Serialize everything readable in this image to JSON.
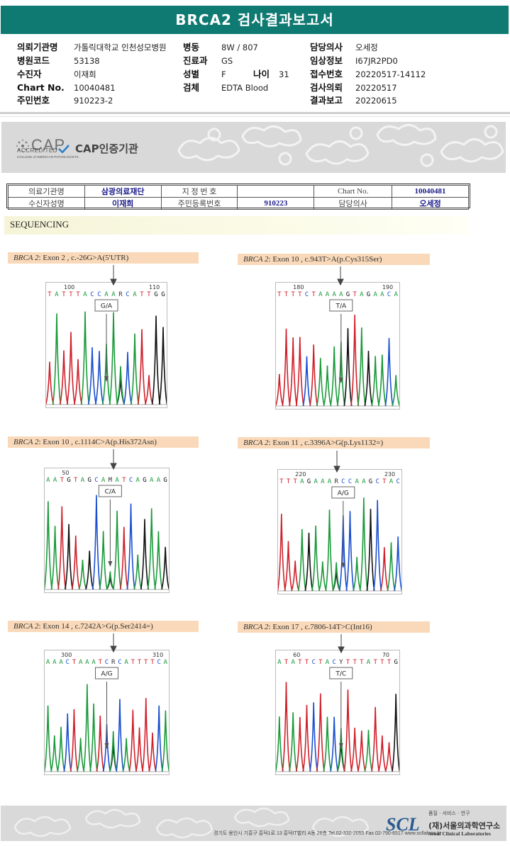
{
  "header": {
    "title": "BRCA2 검사결과보고서"
  },
  "info": {
    "fields": [
      {
        "label": "의뢰기관명",
        "value": "가톨릭대학교 인천성모병원"
      },
      {
        "label": "병원코드",
        "value": "53138"
      },
      {
        "label": "수진자",
        "value": "이재희"
      },
      {
        "label": "Chart No.",
        "value": "10040481"
      },
      {
        "label": "주민번호",
        "value": "910223-2"
      },
      {
        "label": "병동",
        "value": "8W / 807"
      },
      {
        "label": "진료과",
        "value": "GS"
      },
      {
        "label": "성별",
        "value": "F"
      },
      {
        "label": "검체",
        "value": "EDTA Blood"
      },
      {
        "label": "나이",
        "value": "31"
      },
      {
        "label": "담당의사",
        "value": "오세정"
      },
      {
        "label": "임상정보",
        "value": "I67JR2PD0"
      },
      {
        "label": "접수번호",
        "value": "20220517-14112"
      },
      {
        "label": "검사의뢰",
        "value": "20220517"
      },
      {
        "label": "결과보고",
        "value": "20220615"
      }
    ]
  },
  "cap": {
    "logo_text": "CAP",
    "accredited": "ACCREDITED",
    "college": "COLLEGE of AMERICAN PATHOLOGISTS",
    "label": "CAP인증기관"
  },
  "meta_table": {
    "inst_label": "의료기관명",
    "inst_value": "삼광의료재단",
    "designation_label": "지 정 번 호",
    "designation_value": "",
    "chart_label": "Chart No.",
    "chart_value": "10040481",
    "patient_label": "수신자성명",
    "patient_value": "이재희",
    "id_label": "주민등록번호",
    "id_value": "910223",
    "doctor_label": "담당의사",
    "doctor_value": "오세정"
  },
  "section": {
    "title": "SEQUENCING"
  },
  "panels": [
    {
      "gene": "BRCA 2",
      "desc": ": Exon 2 , c.-26G>A(5'UTR)",
      "bases": "TATTTACCAARCATTGG",
      "call": "G/A",
      "pos_left": "100",
      "pos_right": "110"
    },
    {
      "gene": "BRCA 2",
      "desc": ": Exon 10 , c.943T>A(p.Cys315Ser)",
      "bases": "TTTTCTAAAAGTAGAACA",
      "call": "T/A",
      "pos_left": "180",
      "pos_right": "190"
    },
    {
      "gene": "BRCA 2",
      "desc": ": Exon 10 , c.1114C>A(p.His372Asn)",
      "bases": "AATGTAGCAMATCAGAAG",
      "call": "C/A",
      "pos_left": "50",
      "pos_right": ""
    },
    {
      "gene": "BRCA 2",
      "desc": ": Exon 11 , c.3396A>G(p.Lys1132=)",
      "bases": "TTTAGAAARCCAAGCTAC",
      "call": "A/G",
      "pos_left": "220",
      "pos_right": "230"
    },
    {
      "gene": "BRCA 2",
      "desc": ": Exon 14 , c.7242A>G(p.Ser2414=)",
      "bases": "AAACTAAATCRCATTTTCA",
      "call": "A/G",
      "pos_left": "300",
      "pos_right": "310"
    },
    {
      "gene": "BRCA 2",
      "desc": ": Exon 17 , c.7806-14T>C(Int16)",
      "bases": "ATATTCTACYTTTATTTG",
      "call": "T/C",
      "pos_left": "60",
      "pos_right": "70"
    }
  ],
  "footer": {
    "address": "경기도 용인시 기흥구 흥덕1로 13 흥덕IT밸리 A동 26층  Tel.02-330-2055  Fax.02-790-6517  www.scllab.co.kr",
    "logo": "SCL",
    "tagline": "품질 · 서비스 · 연구",
    "org_ko": "(재)서울의과학연구소",
    "org_en": "Seoul Clinical Laboratories"
  },
  "colors": {
    "title_bar": "#0f7a72",
    "label_bg": "#f9d9b9",
    "A": "#1a9a3a",
    "C": "#1a4fd0",
    "G": "#111111",
    "T": "#d0202a"
  }
}
